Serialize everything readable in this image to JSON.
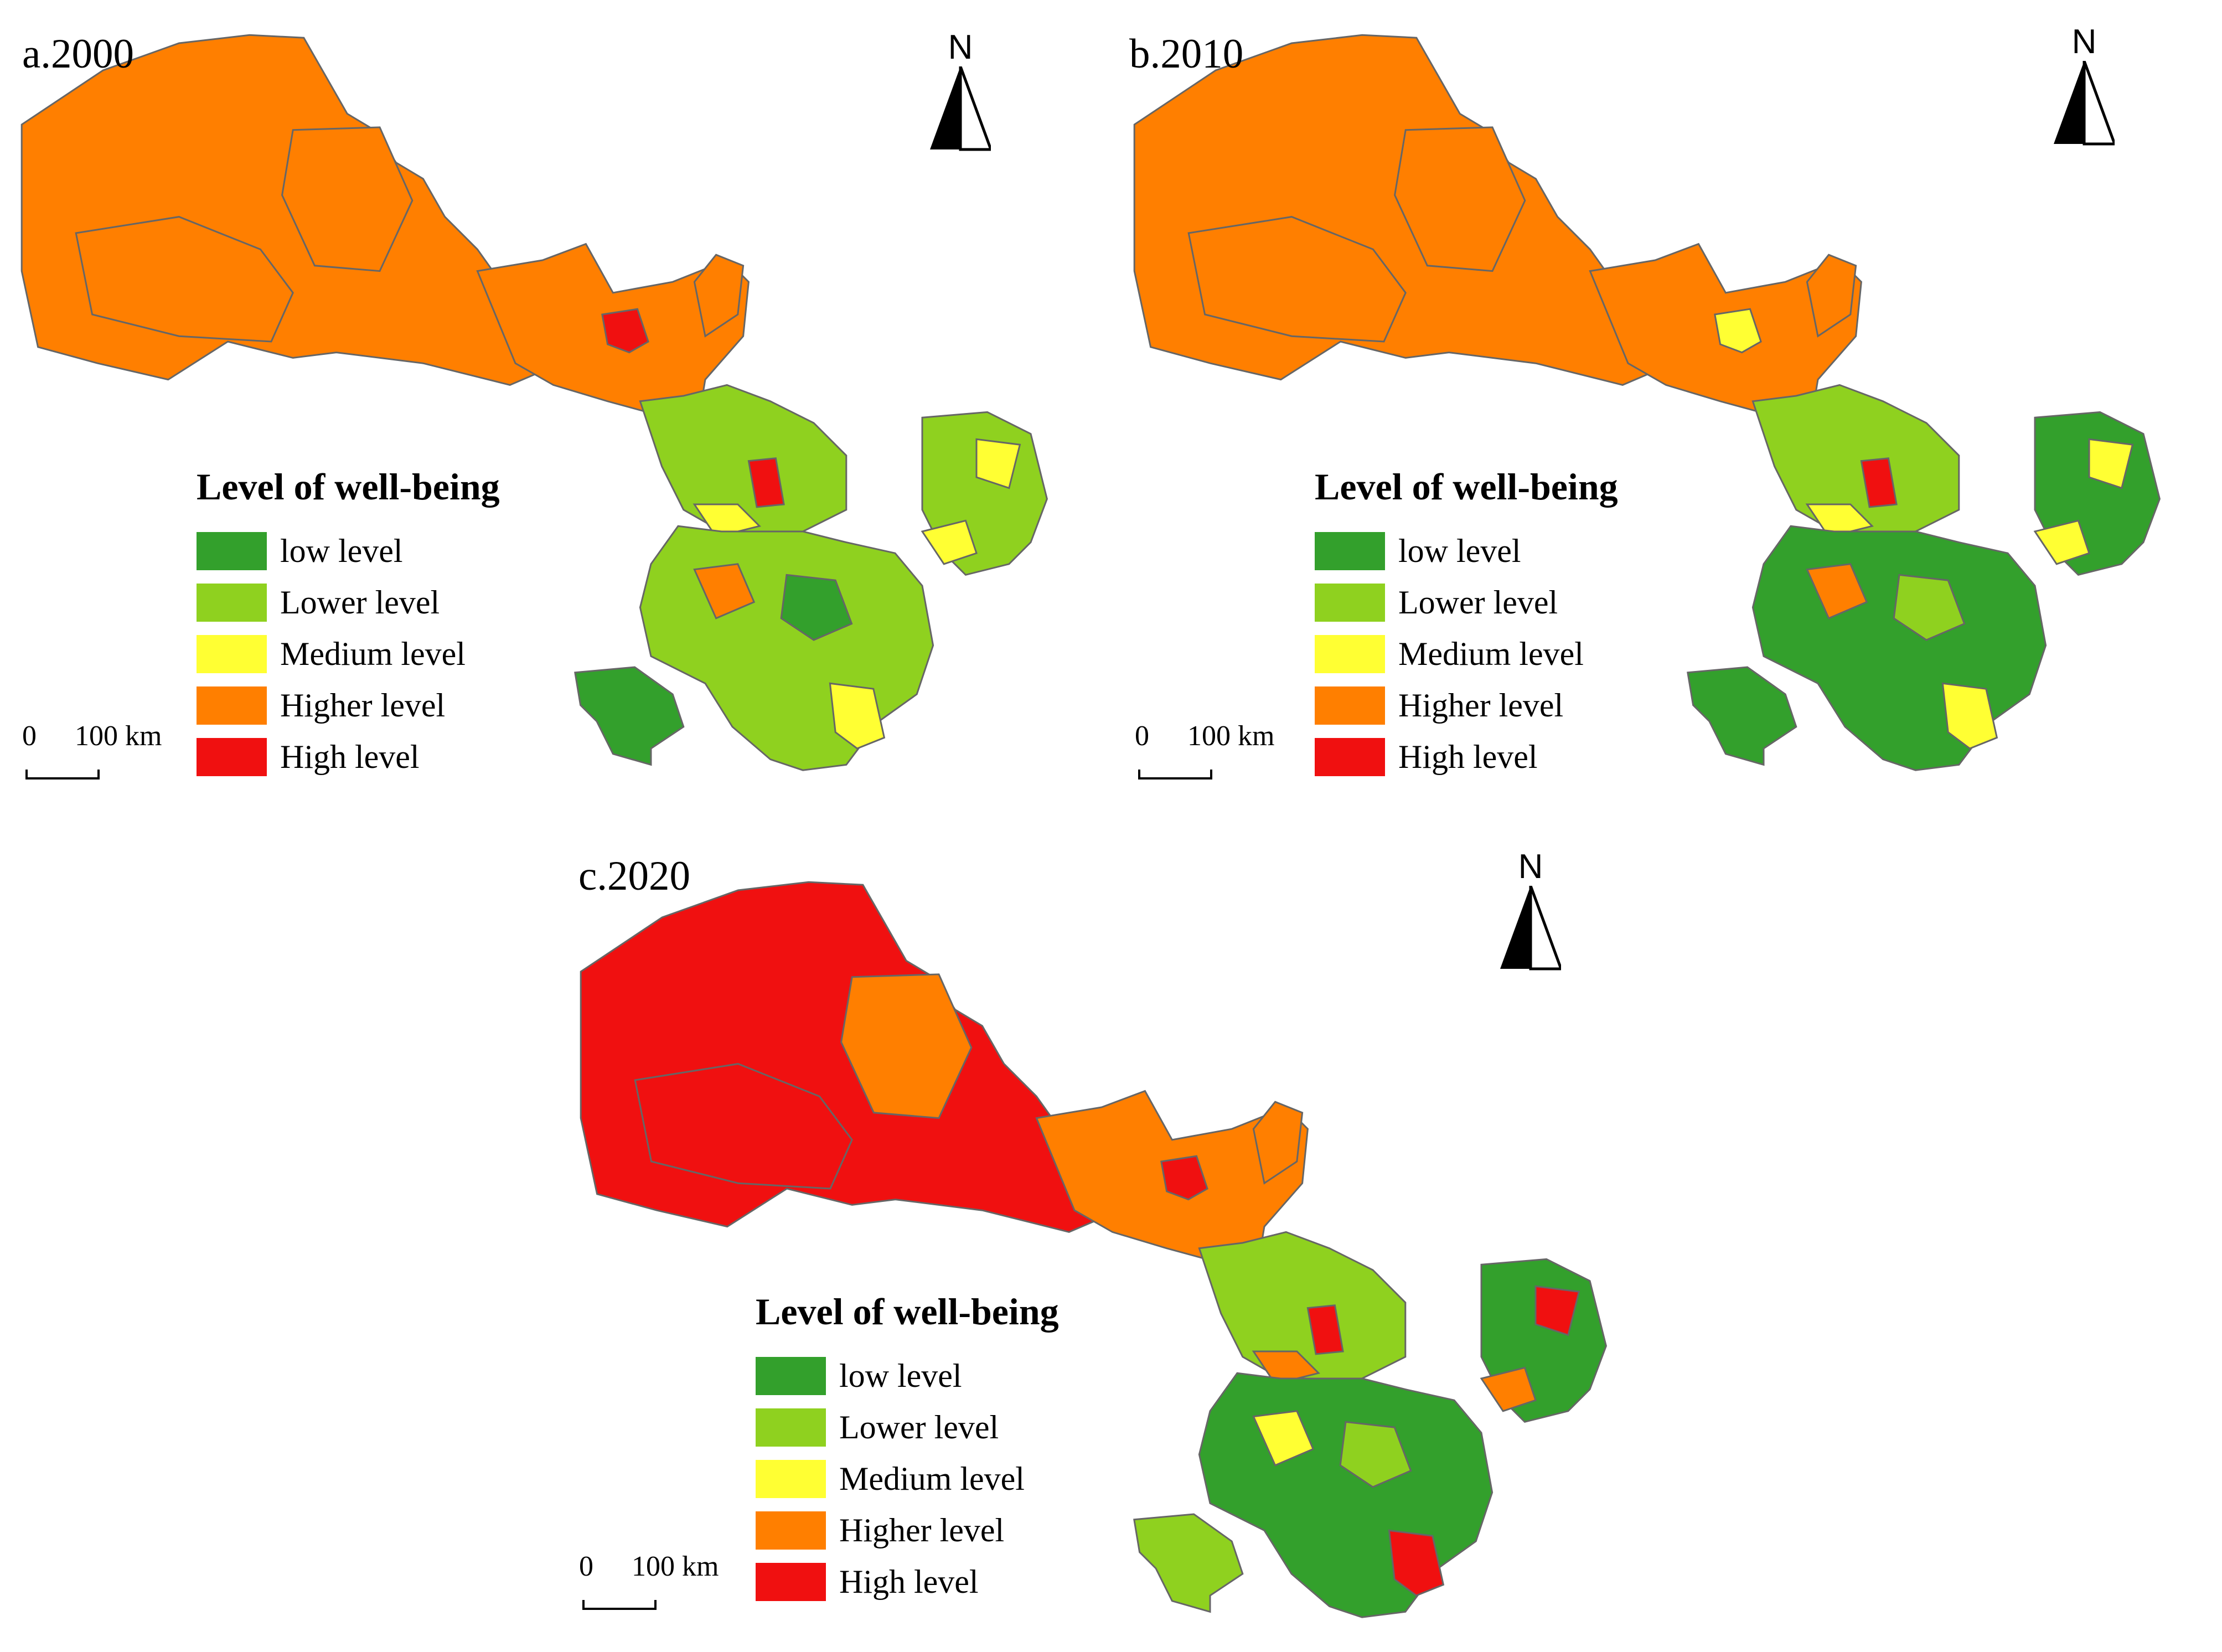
{
  "colors": {
    "low": "#33a02c",
    "lower": "#8fd11f",
    "medium": "#ffff33",
    "higher": "#ff7f00",
    "high": "#f01010",
    "border": "#666666"
  },
  "legend": {
    "title": "Level of well-being",
    "items": [
      {
        "label": "low level",
        "color": "#33a02c"
      },
      {
        "label": "Lower level",
        "color": "#8fd11f"
      },
      {
        "label": "Medium level",
        "color": "#ffff33"
      },
      {
        "label": "Higher level",
        "color": "#ff7f00"
      },
      {
        "label": "High level",
        "color": "#f01010"
      }
    ]
  },
  "scale_bar": {
    "zero": "0",
    "distance": "100 km"
  },
  "north_arrow": {
    "letter": "N"
  },
  "panels": [
    {
      "title": "a.2000",
      "west": "higher",
      "west_cores": "higher",
      "hexi": "higher",
      "hexi_spots": "high",
      "center_spots": [
        "medium",
        "high",
        "higher"
      ],
      "east_mix": [
        "lower",
        "low",
        "medium"
      ],
      "south_tail": "low"
    },
    {
      "title": "b.2010",
      "west": "higher",
      "west_cores": "higher",
      "hexi": "higher",
      "hexi_spots": "medium",
      "center_spots": [
        "medium",
        "high",
        "higher"
      ],
      "east_mix": [
        "low",
        "lower",
        "medium"
      ],
      "south_tail": "low"
    },
    {
      "title": "c.2020",
      "west": "high",
      "west_cores": "higher",
      "hexi": "higher",
      "hexi_spots": "high",
      "center_spots": [
        "higher",
        "high",
        "medium"
      ],
      "east_mix": [
        "low",
        "lower",
        "high"
      ],
      "south_tail": "lower"
    }
  ]
}
